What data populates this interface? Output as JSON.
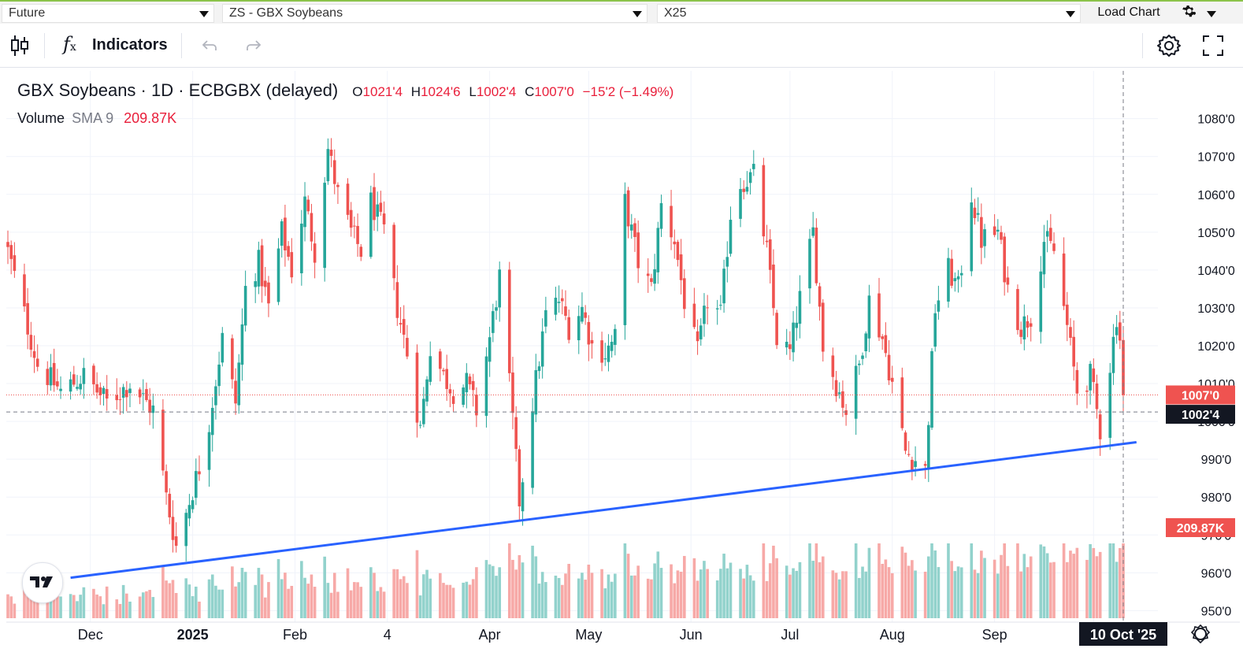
{
  "topbar": {
    "contract_type": "Future",
    "symbol": "ZS - GBX Soybeans",
    "expiry": "X25",
    "load_chart": "Load Chart"
  },
  "toolbar": {
    "indicators": "Indicators"
  },
  "legend": {
    "title": "GBX Soybeans · 1D · ECBGBX (delayed)",
    "o_label": "O",
    "o": "1021'4",
    "h_label": "H",
    "h": "1024'6",
    "l_label": "L",
    "l": "1002'4",
    "c_label": "C",
    "c": "1007'0",
    "change": "−15'2 (−1.49%)",
    "volume_label": "Volume",
    "sma_label": "SMA 9",
    "volume_value": "209.87K"
  },
  "colors": {
    "up": "#26a69a",
    "down": "#ef5350",
    "trend": "#2962ff",
    "vol_up": "#92d2cc",
    "vol_down": "#f7a9a7"
  },
  "chart_data": {
    "type": "candlestick",
    "ylim": [
      948,
      1092
    ],
    "y_ticks": [
      950,
      960,
      970,
      980,
      990,
      1000,
      1010,
      1020,
      1030,
      1040,
      1050,
      1060,
      1070,
      1080
    ],
    "y_tick_labels": [
      "950'0",
      "960'0",
      "970'0",
      "980'0",
      "990'0",
      "1000'0",
      "1010'0",
      "1020'0",
      "1030'0",
      "1040'0",
      "1050'0",
      "1060'0",
      "1070'0",
      "1080'0"
    ],
    "x_tick_labels": [
      {
        "date": "2024-12-01",
        "label": "Dec"
      },
      {
        "date": "2025-01-01",
        "label": "2025"
      },
      {
        "date": "2025-02-01",
        "label": "Feb"
      },
      {
        "date": "2025-03-01",
        "label": "4"
      },
      {
        "date": "2025-04-01",
        "label": "Apr"
      },
      {
        "date": "2025-05-01",
        "label": "May"
      },
      {
        "date": "2025-06-01",
        "label": "Jun"
      },
      {
        "date": "2025-07-01",
        "label": "Jul"
      },
      {
        "date": "2025-08-01",
        "label": "Aug"
      },
      {
        "date": "2025-09-01",
        "label": "Sep"
      },
      {
        "date": "2025-10-01",
        "label": "Oct"
      }
    ],
    "last_close": 1007.0,
    "last_close_label": "1007'0",
    "crosshair_price": 1002.5,
    "crosshair_price_label": "1002'4",
    "crosshair_date": "10 Oct '25",
    "volume_label_value": "209.87K",
    "trendline": [
      {
        "date": "2024-11-25",
        "price": 958.7
      },
      {
        "date": "2025-10-14",
        "price": 994.5
      }
    ],
    "path": [
      [
        "2024-11-06",
        1045
      ],
      [
        "2024-11-15",
        1015
      ],
      [
        "2024-11-22",
        1008
      ],
      [
        "2024-11-29",
        1012
      ],
      [
        "2024-12-06",
        1005
      ],
      [
        "2024-12-13",
        1010
      ],
      [
        "2024-12-20",
        1003
      ],
      [
        "2024-12-24",
        980
      ],
      [
        "2024-12-27",
        967
      ],
      [
        "2025-01-03",
        988
      ],
      [
        "2025-01-06",
        1000
      ],
      [
        "2025-01-10",
        1022
      ],
      [
        "2025-01-14",
        1005
      ],
      [
        "2025-01-17",
        1035
      ],
      [
        "2025-01-21",
        1042
      ],
      [
        "2025-01-24",
        1030
      ],
      [
        "2025-01-28",
        1050
      ],
      [
        "2025-01-31",
        1040
      ],
      [
        "2025-02-04",
        1058
      ],
      [
        "2025-02-07",
        1045
      ],
      [
        "2025-02-11",
        1072
      ],
      [
        "2025-02-14",
        1060
      ],
      [
        "2025-02-18",
        1050
      ],
      [
        "2025-02-21",
        1045
      ],
      [
        "2025-02-24",
        1058
      ],
      [
        "2025-02-28",
        1050
      ],
      [
        "2025-03-04",
        1030
      ],
      [
        "2025-03-07",
        1018
      ],
      [
        "2025-03-11",
        998
      ],
      [
        "2025-03-14",
        1020
      ],
      [
        "2025-03-18",
        1012
      ],
      [
        "2025-03-21",
        1008
      ],
      [
        "2025-03-25",
        1010
      ],
      [
        "2025-03-28",
        1003
      ],
      [
        "2025-04-01",
        1022
      ],
      [
        "2025-04-04",
        1038
      ],
      [
        "2025-04-08",
        1000
      ],
      [
        "2025-04-10",
        979
      ],
      [
        "2025-04-14",
        1005
      ],
      [
        "2025-04-18",
        1028
      ],
      [
        "2025-04-22",
        1032
      ],
      [
        "2025-04-25",
        1025
      ],
      [
        "2025-04-29",
        1030
      ],
      [
        "2025-05-02",
        1020
      ],
      [
        "2025-05-06",
        1018
      ],
      [
        "2025-05-09",
        1022
      ],
      [
        "2025-05-12",
        1058
      ],
      [
        "2025-05-16",
        1042
      ],
      [
        "2025-05-20",
        1035
      ],
      [
        "2025-05-23",
        1057
      ],
      [
        "2025-05-27",
        1048
      ],
      [
        "2025-05-30",
        1032
      ],
      [
        "2025-06-03",
        1018
      ],
      [
        "2025-06-06",
        1032
      ],
      [
        "2025-06-10",
        1028
      ],
      [
        "2025-06-13",
        1055
      ],
      [
        "2025-06-16",
        1063
      ],
      [
        "2025-06-20",
        1065
      ],
      [
        "2025-06-24",
        1045
      ],
      [
        "2025-06-27",
        1022
      ],
      [
        "2025-07-01",
        1018
      ],
      [
        "2025-07-03",
        1028
      ],
      [
        "2025-07-08",
        1050
      ],
      [
        "2025-07-11",
        1020
      ],
      [
        "2025-07-15",
        1010
      ],
      [
        "2025-07-18",
        1003
      ],
      [
        "2025-07-22",
        1015
      ],
      [
        "2025-07-25",
        1032
      ],
      [
        "2025-07-29",
        1022
      ],
      [
        "2025-08-01",
        1010
      ],
      [
        "2025-08-05",
        992
      ],
      [
        "2025-08-08",
        990
      ],
      [
        "2025-08-11",
        987
      ],
      [
        "2025-08-14",
        1030
      ],
      [
        "2025-08-18",
        1040
      ],
      [
        "2025-08-21",
        1035
      ],
      [
        "2025-08-25",
        1060
      ],
      [
        "2025-08-28",
        1048
      ],
      [
        "2025-09-02",
        1050
      ],
      [
        "2025-09-05",
        1035
      ],
      [
        "2025-09-09",
        1025
      ],
      [
        "2025-09-12",
        1028
      ],
      [
        "2025-09-16",
        1048
      ],
      [
        "2025-09-19",
        1045
      ],
      [
        "2025-09-23",
        1025
      ],
      [
        "2025-09-26",
        1008
      ],
      [
        "2025-09-30",
        1012
      ],
      [
        "2025-10-03",
        998
      ],
      [
        "2025-10-06",
        1015
      ],
      [
        "2025-10-08",
        1028
      ],
      [
        "2025-10-09",
        1022
      ],
      [
        "2025-10-10",
        1007
      ]
    ],
    "volume_ylim": [
      0,
      450000
    ]
  }
}
